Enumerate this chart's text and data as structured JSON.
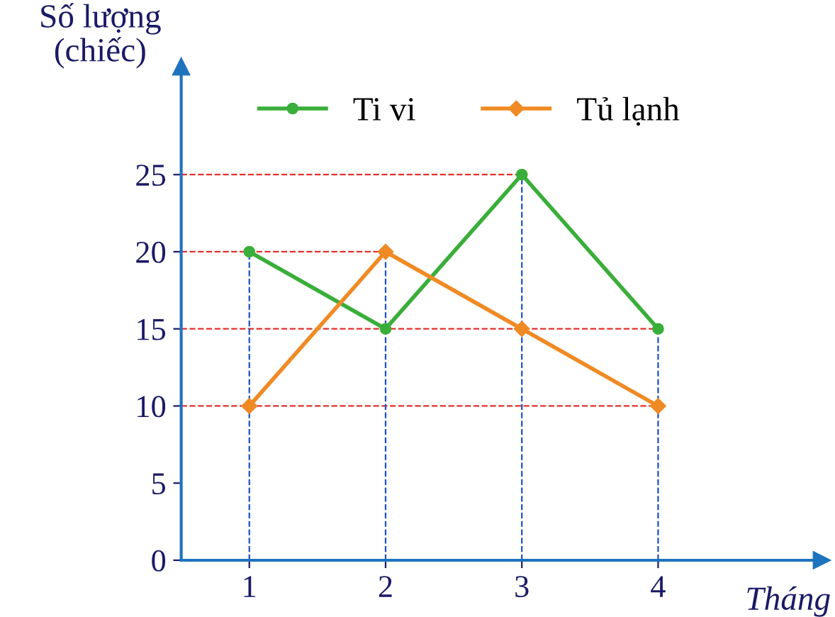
{
  "chart_data": {
    "type": "line",
    "xlabel": "Tháng",
    "ylabel": "Số lượng\n(chiếc)",
    "x": [
      1,
      2,
      3,
      4
    ],
    "series": [
      {
        "name": "Ti vi",
        "color": "#3aae3a",
        "values": [
          20,
          15,
          25,
          15
        ],
        "marker": "circle"
      },
      {
        "name": "Tủ lạnh",
        "color": "#f08a24",
        "values": [
          10,
          20,
          15,
          10
        ],
        "marker": "diamond"
      }
    ],
    "xlim": [
      0.5,
      5.2
    ],
    "ylim": [
      0,
      32
    ],
    "xticks": [
      1,
      2,
      3,
      4
    ],
    "yticks": [
      0,
      5,
      10,
      15,
      20,
      25
    ],
    "ref_lines": [
      {
        "axis": "y",
        "value": 10,
        "color": "#e03030",
        "line_style": "dashed"
      },
      {
        "axis": "y",
        "value": 15,
        "color": "#e03030",
        "line_style": "dashed"
      },
      {
        "axis": "y",
        "value": 20,
        "color": "#e03030",
        "line_style": "dashed"
      },
      {
        "axis": "y",
        "value": 25,
        "color": "#e03030",
        "line_style": "dashed"
      },
      {
        "axis": "x",
        "value": 1,
        "color": "#1e50c0",
        "line_style": "dashed"
      },
      {
        "axis": "x",
        "value": 2,
        "color": "#1e50c0",
        "line_style": "dashed"
      },
      {
        "axis": "x",
        "value": 3,
        "color": "#1e50c0",
        "line_style": "dashed"
      },
      {
        "axis": "x",
        "value": 4,
        "color": "#1e50c0",
        "line_style": "dashed"
      }
    ],
    "grid": false,
    "legend": "top",
    "line_style": "solid"
  }
}
